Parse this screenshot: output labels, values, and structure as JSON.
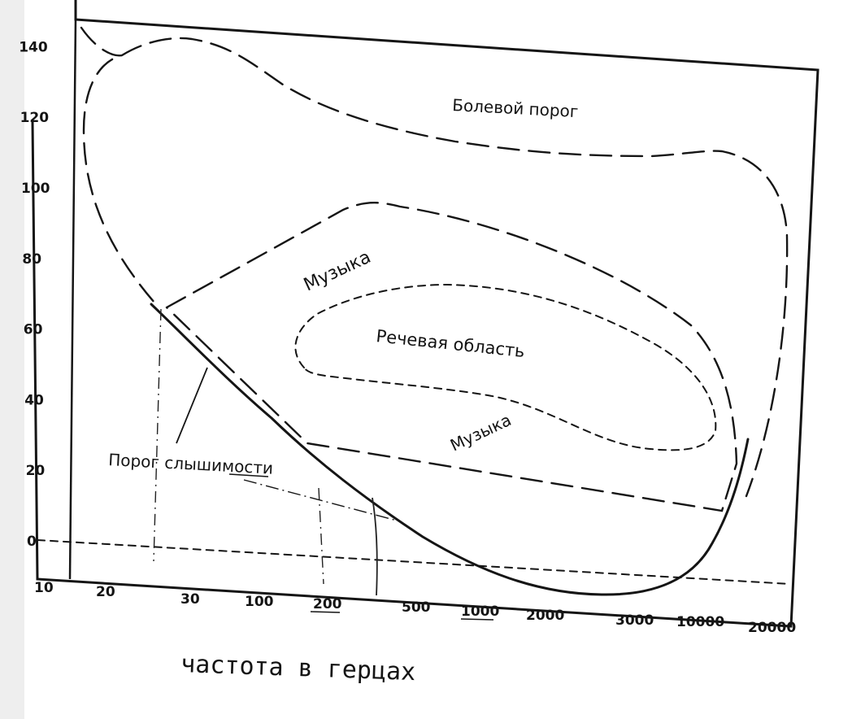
{
  "chart_data": {
    "type": "line",
    "xlabel": "частота в герцах",
    "ylabel": "",
    "x_ticks": [
      "10",
      "20",
      "30",
      "100",
      "200",
      "500",
      "1000",
      "2000",
      "3000",
      "10000",
      "20000"
    ],
    "y_ticks": [
      "0",
      "20",
      "40",
      "60",
      "80",
      "100",
      "120",
      "140"
    ],
    "ylim": [
      -15,
      150
    ],
    "annotations": {
      "pain": "Болевой порог",
      "music_upper": "Музыка",
      "speech": "Речевая область",
      "music_lower": "Музыка",
      "hearing": "Порог слышимости"
    },
    "series": [
      {
        "name": "Болевой порог",
        "style": "long-dash",
        "points": [
          [
            "20",
            148
          ],
          [
            "20",
            120
          ],
          [
            "20",
            100
          ],
          [
            "30",
            82
          ],
          [
            "30",
            68
          ],
          [
            "30",
            75
          ],
          [
            "30",
            125
          ],
          [
            "30",
            143
          ],
          [
            "100",
            135
          ],
          [
            "200",
            126
          ],
          [
            "500",
            121
          ],
          [
            "1000",
            117
          ],
          [
            "2000",
            114
          ],
          [
            "3000",
            111
          ],
          [
            "10000",
            111
          ],
          [
            "20000",
            100
          ],
          [
            "20000",
            70
          ],
          [
            "20000",
            40
          ],
          [
            "20000",
            20
          ]
        ]
      },
      {
        "name": "Порог слышимости",
        "style": "solid",
        "points": [
          [
            "20",
            72
          ],
          [
            "30",
            66
          ],
          [
            "100",
            48
          ],
          [
            "200",
            32
          ],
          [
            "500",
            14
          ],
          [
            "1000",
            0
          ],
          [
            "2000",
            -8
          ],
          [
            "3000",
            -10
          ],
          [
            "10000",
            0
          ],
          [
            "20000",
            20
          ]
        ]
      },
      {
        "name": "Музыка",
        "style": "long-dash",
        "points": [
          [
            "30",
            67
          ],
          [
            "100",
            79
          ],
          [
            "200",
            90
          ],
          [
            "500",
            97
          ],
          [
            "1000",
            91
          ],
          [
            "2000",
            80
          ],
          [
            "3000",
            68
          ],
          [
            "10000",
            40
          ],
          [
            "10000",
            10
          ],
          [
            "200",
            28
          ],
          [
            "30",
            67
          ]
        ]
      },
      {
        "name": "Речевая область",
        "style": "short-dash",
        "points": [
          [
            "200",
            52
          ],
          [
            "200",
            62
          ],
          [
            "500",
            72
          ],
          [
            "1000",
            72
          ],
          [
            "2000",
            66
          ],
          [
            "3000",
            58
          ],
          [
            "10000",
            43
          ],
          [
            "10000",
            37
          ],
          [
            "3000",
            27
          ],
          [
            "2000",
            35
          ],
          [
            "1000",
            44
          ],
          [
            "500",
            46
          ],
          [
            "200",
            52
          ]
        ]
      },
      {
        "name": "",
        "style": "short-dash",
        "points": [
          [
            "10",
            0
          ],
          [
            "20000",
            -10
          ]
        ]
      }
    ]
  }
}
